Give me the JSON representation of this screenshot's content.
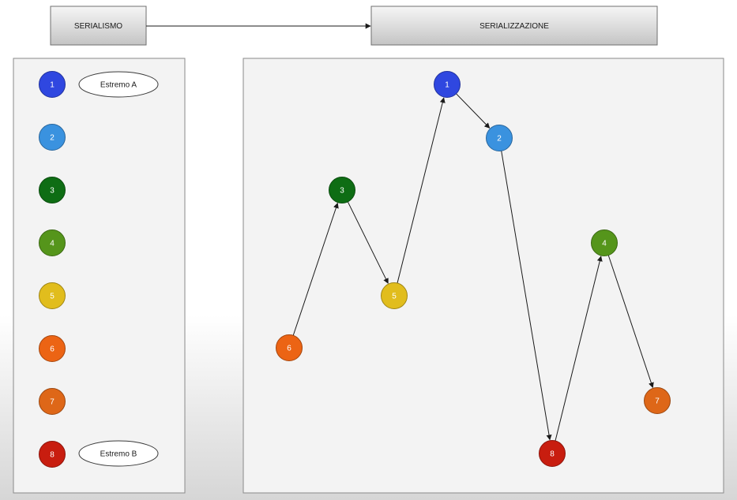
{
  "header": {
    "left_box_label": "SERIALISMO",
    "right_box_label": "SERIALIZZAZIONE"
  },
  "legend": {
    "nodes": [
      {
        "label": "1",
        "color": "#2f47e0"
      },
      {
        "label": "2",
        "color": "#3a92df"
      },
      {
        "label": "3",
        "color": "#0e6d14"
      },
      {
        "label": "4",
        "color": "#55951b"
      },
      {
        "label": "5",
        "color": "#e1bd1d"
      },
      {
        "label": "6",
        "color": "#ec6414"
      },
      {
        "label": "7",
        "color": "#de6718"
      },
      {
        "label": "8",
        "color": "#c81d0f"
      }
    ],
    "extreme_a_label": "Estremo A",
    "extreme_b_label": "Estremo B"
  },
  "series": {
    "nodes": [
      {
        "label": "6",
        "color": "#ec6414"
      },
      {
        "label": "3",
        "color": "#0e6d14"
      },
      {
        "label": "5",
        "color": "#e1bd1d"
      },
      {
        "label": "1",
        "color": "#2f47e0"
      },
      {
        "label": "2",
        "color": "#3a92df"
      },
      {
        "label": "8",
        "color": "#c81d0f"
      },
      {
        "label": "4",
        "color": "#55951b"
      },
      {
        "label": "7",
        "color": "#de6718"
      }
    ]
  }
}
